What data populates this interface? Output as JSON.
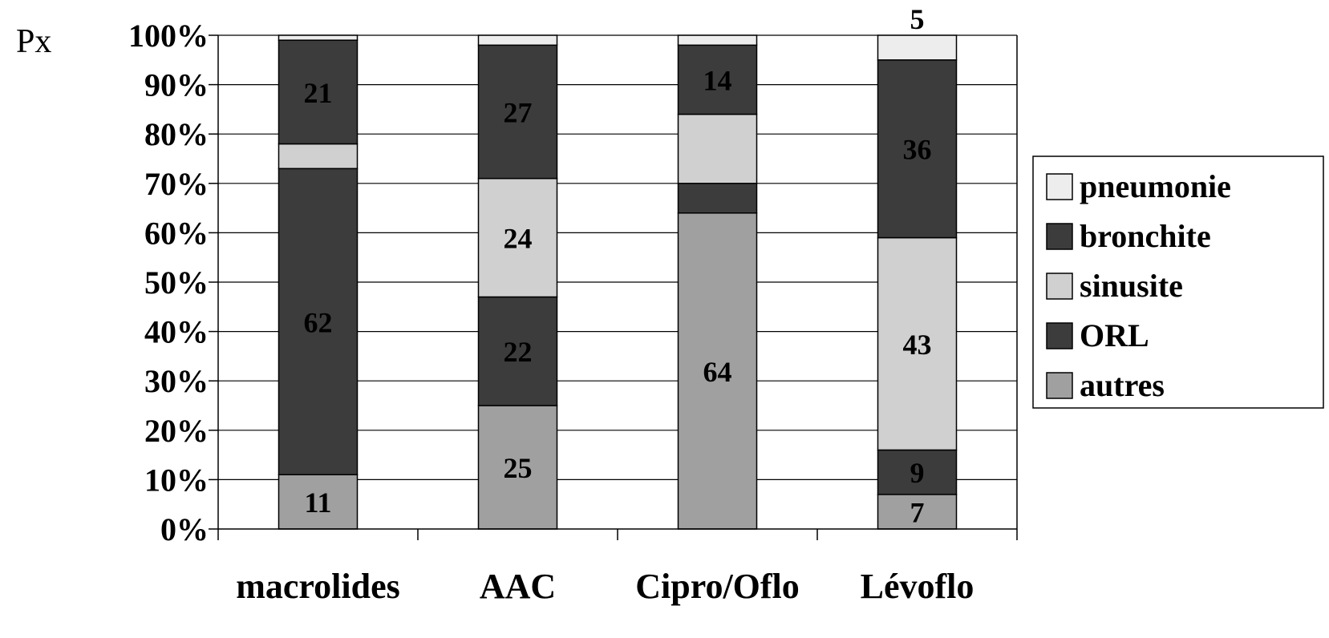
{
  "chart_data": {
    "type": "bar",
    "stacked": true,
    "title": "",
    "xlabel": "",
    "ylabel": "Px",
    "ylim": [
      0,
      100
    ],
    "yticks": [
      "0%",
      "10%",
      "20%",
      "30%",
      "40%",
      "50%",
      "60%",
      "70%",
      "80%",
      "90%",
      "100%"
    ],
    "categories": [
      "macrolides",
      "AAC",
      "Cipro/Oflo",
      "Lévoflo"
    ],
    "grid": true,
    "legend_position": "right",
    "series": [
      {
        "name": "autres",
        "color": "#a0a0a0",
        "values": [
          11,
          25,
          64,
          7
        ],
        "labels": [
          "11",
          "25",
          "64",
          "7"
        ]
      },
      {
        "name": "ORL",
        "color": "#3c3c3c",
        "values": [
          62,
          22,
          6,
          9
        ],
        "labels": [
          "62",
          "22",
          "",
          "9"
        ]
      },
      {
        "name": "sinusite",
        "color": "#d0d0d0",
        "values": [
          5,
          24,
          14,
          43
        ],
        "labels": [
          "",
          "24",
          "",
          "43"
        ]
      },
      {
        "name": "bronchite",
        "color": "#3c3c3c",
        "values": [
          21,
          27,
          14,
          36
        ],
        "labels": [
          "21",
          "27",
          "14",
          "36"
        ]
      },
      {
        "name": "pneumonie",
        "color": "#ededed",
        "values": [
          1,
          2,
          2,
          5
        ],
        "labels": [
          "",
          "",
          "",
          "5"
        ]
      }
    ]
  }
}
